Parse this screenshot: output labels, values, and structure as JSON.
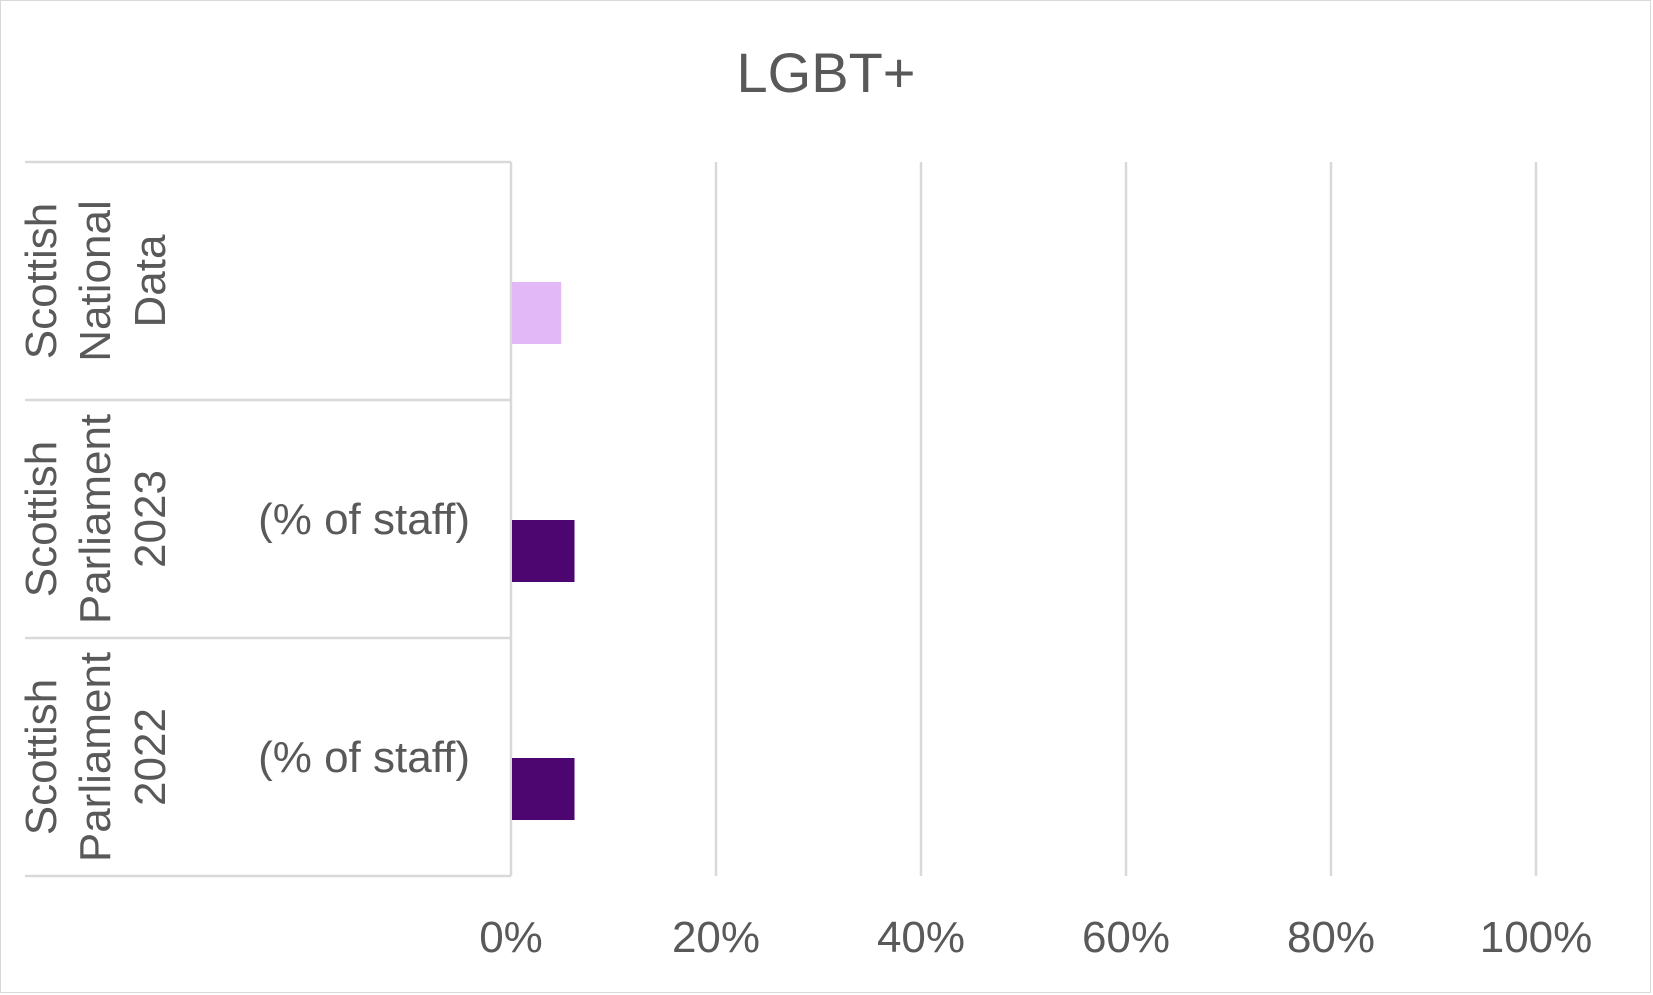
{
  "chart_data": {
    "type": "bar",
    "orientation": "horizontal",
    "title": "LGBT+",
    "xlabel": "",
    "ylabel": "",
    "xlim": [
      0,
      1
    ],
    "grid": true,
    "ticks": [
      "0%",
      "20%",
      "40%",
      "60%",
      "80%",
      "100%"
    ],
    "tick_values": [
      0,
      0.2,
      0.4,
      0.6,
      0.8,
      1.0
    ],
    "categories": [
      {
        "lines": [
          "Scottish",
          "National",
          "Data"
        ],
        "note": "",
        "value": 0.048,
        "color": "#e2b8f7"
      },
      {
        "lines": [
          "Scottish",
          "Parliament",
          "2023"
        ],
        "note": "(% of staff)",
        "value": 0.061,
        "color": "#4d0670"
      },
      {
        "lines": [
          "Scottish",
          "Parliament",
          "2022"
        ],
        "note": "(% of staff)",
        "value": 0.061,
        "color": "#4d0670"
      }
    ]
  }
}
